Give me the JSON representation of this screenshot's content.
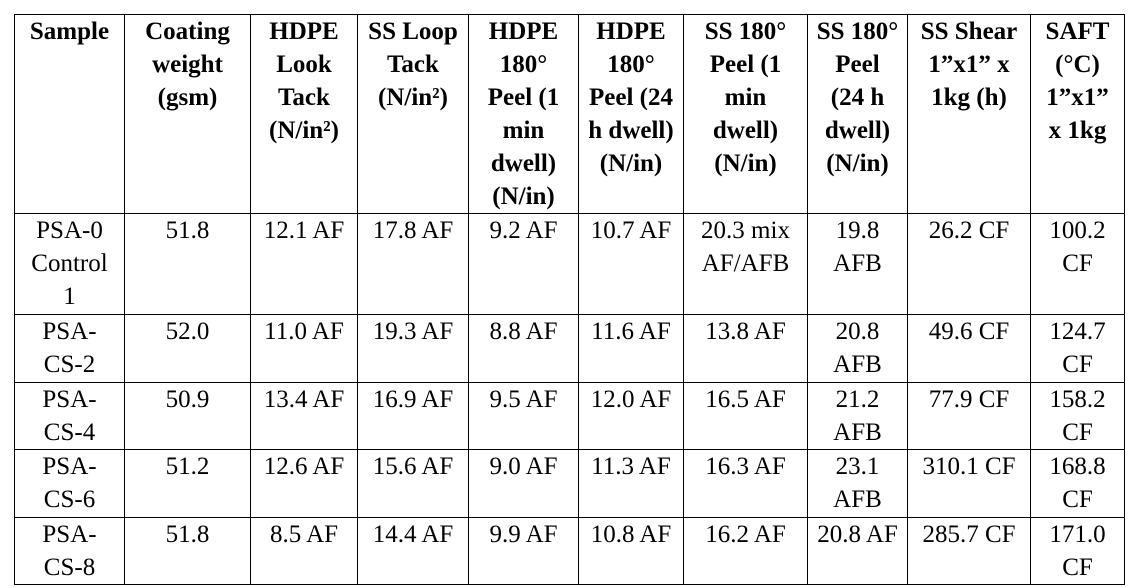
{
  "table": {
    "header": [
      "Sample",
      "Coating weight (gsm)",
      "HDPE Look Tack (N/in²)",
      "SS Loop Tack (N/in²)",
      "HDPE 180° Peel (1 min dwell) (N/in)",
      "HDPE 180° Peel (24 h dwell) (N/in)",
      "SS 180° Peel (1 min dwell) (N/in)",
      "SS 180° Peel (24 h dwell) (N/in)",
      "SS Shear 1”x1” x 1kg (h)",
      "SAFT (°C) 1”x1” x 1kg"
    ],
    "rows": [
      [
        "PSA-0 Control 1",
        "51.8",
        "12.1 AF",
        "17.8 AF",
        "9.2 AF",
        "10.7 AF",
        "20.3 mix AF/AFB",
        "19.8 AFB",
        "26.2 CF",
        "100.2 CF"
      ],
      [
        "PSA-CS-2",
        "52.0",
        "11.0 AF",
        "19.3 AF",
        "8.8 AF",
        "11.6 AF",
        "13.8 AF",
        "20.8 AFB",
        "49.6 CF",
        "124.7 CF"
      ],
      [
        "PSA-CS-4",
        "50.9",
        "13.4 AF",
        "16.9 AF",
        "9.5 AF",
        "12.0 AF",
        "16.5 AF",
        "21.2 AFB",
        "77.9 CF",
        "158.2 CF"
      ],
      [
        "PSA-CS-6",
        "51.2",
        "12.6 AF",
        "15.6 AF",
        "9.0 AF",
        "11.3 AF",
        "16.3 AF",
        "23.1 AFB",
        "310.1 CF",
        "168.8 CF"
      ],
      [
        "PSA-CS-8",
        "51.8",
        "8.5 AF",
        "14.4 AF",
        "9.9 AF",
        "10.8 AF",
        "16.2 AF",
        "20.8 AF",
        "285.7 CF",
        "171.0 CF"
      ]
    ]
  }
}
